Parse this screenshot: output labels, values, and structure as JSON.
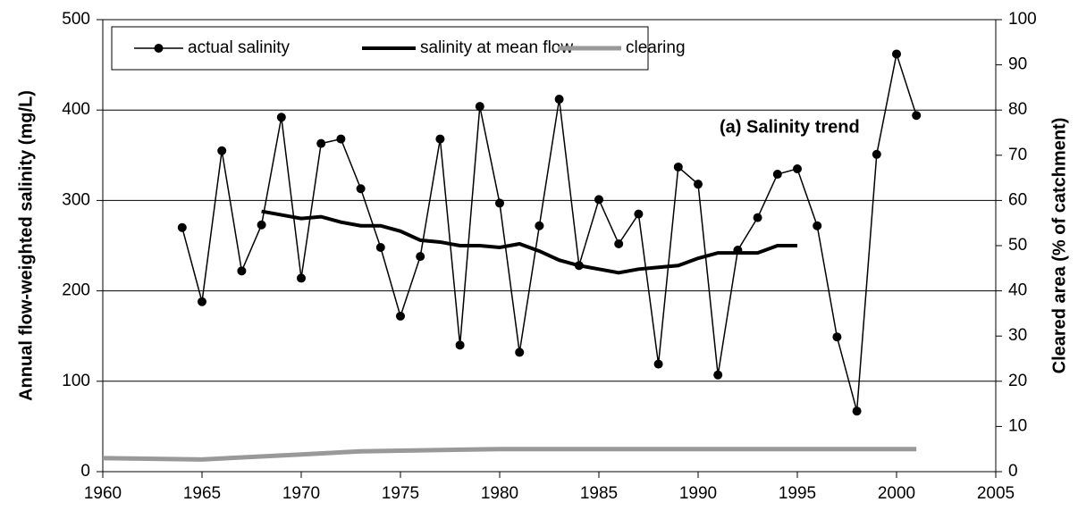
{
  "chart_data": {
    "type": "line",
    "annotation": "(a) Salinity trend",
    "ylabel": "Annual flow-weighted salinity (mg/L)",
    "y2label": "Cleared area (% of catchment)",
    "xlim": [
      1960,
      2005
    ],
    "xticks": [
      1960,
      1965,
      1970,
      1975,
      1980,
      1985,
      1990,
      1995,
      2000,
      2005
    ],
    "ylim": [
      0,
      500
    ],
    "yticks": [
      0,
      100,
      200,
      300,
      400,
      500
    ],
    "y2lim": [
      0,
      100
    ],
    "y2ticks": [
      0,
      10,
      20,
      30,
      40,
      50,
      60,
      70,
      80,
      90,
      100
    ],
    "grid": true,
    "legend": "top-left",
    "series": [
      {
        "name": "actual salinity",
        "color": "#000000",
        "markers": true,
        "x": [
          1964,
          1965,
          1966,
          1967,
          1968,
          1969,
          1970,
          1971,
          1972,
          1973,
          1974,
          1975,
          1976,
          1977,
          1978,
          1979,
          1980,
          1981,
          1982,
          1983,
          1984,
          1985,
          1986,
          1987,
          1988,
          1989,
          1990,
          1991,
          1992,
          1993,
          1994,
          1995,
          1996,
          1997,
          1998,
          1999,
          2000,
          2001
        ],
        "values": [
          270,
          188,
          355,
          222,
          273,
          392,
          214,
          363,
          368,
          313,
          248,
          172,
          238,
          368,
          140,
          404,
          297,
          132,
          272,
          412,
          228,
          301,
          252,
          285,
          119,
          337,
          318,
          107,
          245,
          281,
          329,
          335,
          272,
          149,
          67,
          351,
          462,
          394
        ]
      },
      {
        "name": "salinity at mean flow",
        "color": "#000000",
        "markers": false,
        "x": [
          1968,
          1969,
          1970,
          1971,
          1972,
          1973,
          1974,
          1975,
          1976,
          1977,
          1978,
          1979,
          1980,
          1981,
          1982,
          1983,
          1984,
          1985,
          1986,
          1987,
          1988,
          1989,
          1990,
          1991,
          1992,
          1993,
          1994,
          1995
        ],
        "values": [
          288,
          284,
          280,
          282,
          276,
          272,
          272,
          266,
          256,
          254,
          250,
          250,
          248,
          252,
          244,
          234,
          228,
          224,
          220,
          224,
          226,
          228,
          236,
          242,
          242,
          242,
          250,
          250
        ]
      },
      {
        "name": "clearing",
        "color": "#999999",
        "markers": false,
        "axis": "y2",
        "x": [
          1960,
          1965,
          1970,
          1973,
          1980,
          2001
        ],
        "values": [
          3,
          2.7,
          3.8,
          4.5,
          5,
          5
        ]
      }
    ]
  }
}
